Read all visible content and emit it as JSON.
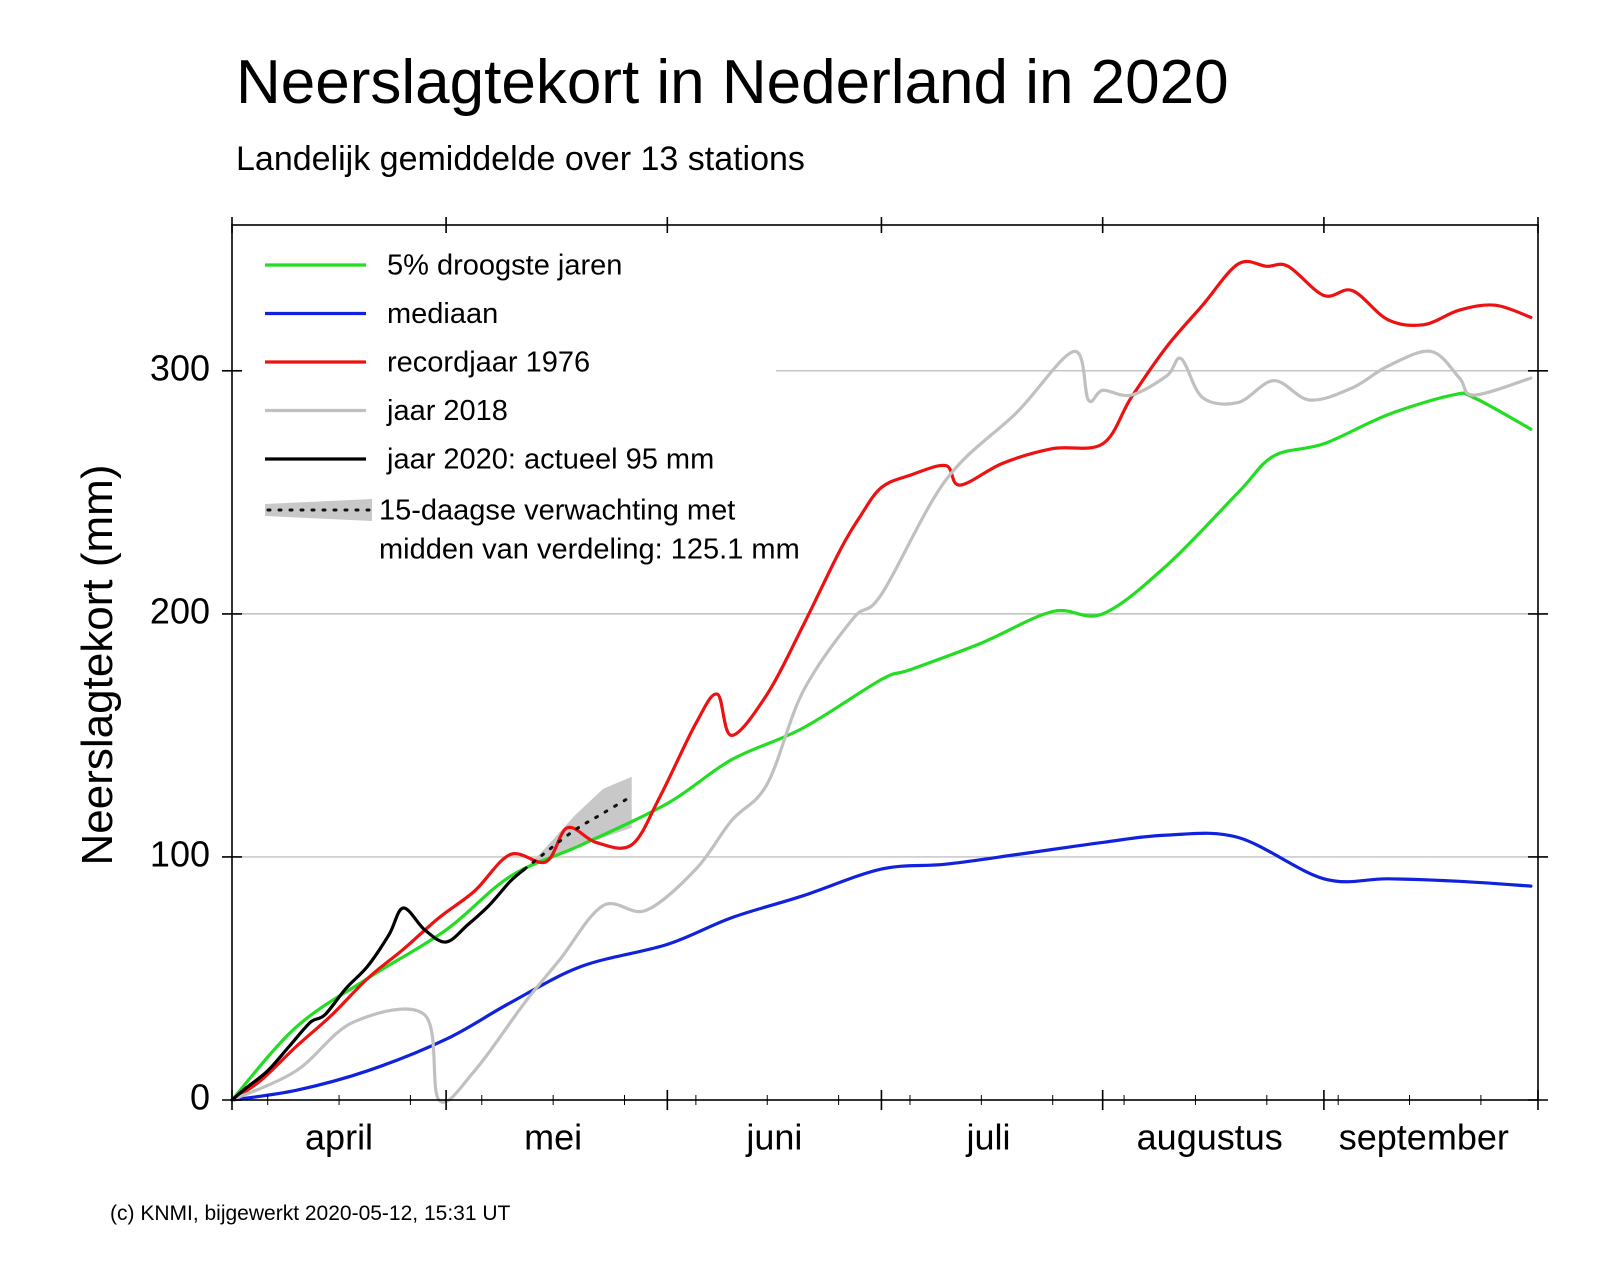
{
  "chart_data": {
    "type": "line",
    "title": "Neerslagtekort in Nederland in 2020",
    "subtitle": "Landelijk gemiddelde over 13 stations",
    "ylabel": "Neerslagtekort (mm)",
    "xlabel": "",
    "ylim": [
      0,
      360
    ],
    "xlim": [
      "2020-04-01",
      "2020-09-30"
    ],
    "yticks": [
      0,
      100,
      200,
      300
    ],
    "month_ticks": [
      "2020-04-01",
      "2020-05-01",
      "2020-06-01",
      "2020-07-01",
      "2020-08-01",
      "2020-09-01",
      "2020-10-01"
    ],
    "month_labels": [
      {
        "label": "april",
        "center": "2020-04-16"
      },
      {
        "label": "mei",
        "center": "2020-05-16"
      },
      {
        "label": "juni",
        "center": "2020-06-16"
      },
      {
        "label": "juli",
        "center": "2020-07-16"
      },
      {
        "label": "augustus",
        "center": "2020-08-16"
      },
      {
        "label": "september",
        "center": "2020-09-15"
      }
    ],
    "grid": "horizontal",
    "legend_position": "top-left",
    "series": [
      {
        "name": "5% droogste jaren",
        "color": "#22dd22",
        "x": [
          "2020-04-01",
          "2020-04-10",
          "2020-04-20",
          "2020-05-01",
          "2020-05-10",
          "2020-05-20",
          "2020-06-01",
          "2020-06-10",
          "2020-06-20",
          "2020-07-01",
          "2020-07-05",
          "2020-07-15",
          "2020-07-25",
          "2020-08-01",
          "2020-08-10",
          "2020-08-20",
          "2020-08-25",
          "2020-09-01",
          "2020-09-10",
          "2020-09-19",
          "2020-09-22",
          "2020-09-30"
        ],
        "y": [
          0,
          30,
          50,
          70,
          92,
          105,
          122,
          140,
          153,
          173,
          177,
          188,
          201,
          200,
          220,
          250,
          265,
          270,
          282,
          290,
          289,
          276
        ]
      },
      {
        "name": "mediaan",
        "color": "#1122dd",
        "x": [
          "2020-04-01",
          "2020-04-10",
          "2020-04-20",
          "2020-05-01",
          "2020-05-10",
          "2020-05-20",
          "2020-06-01",
          "2020-06-10",
          "2020-06-20",
          "2020-07-01",
          "2020-07-10",
          "2020-07-20",
          "2020-08-01",
          "2020-08-10",
          "2020-08-20",
          "2020-09-01",
          "2020-09-10",
          "2020-09-20",
          "2020-09-30"
        ],
        "y": [
          0,
          4,
          12,
          25,
          40,
          55,
          64,
          75,
          84,
          95,
          97,
          101,
          106,
          109,
          108,
          91,
          91,
          90,
          88
        ]
      },
      {
        "name": "recordjaar 1976",
        "color": "#ee1111",
        "x": [
          "2020-04-01",
          "2020-04-05",
          "2020-04-10",
          "2020-04-15",
          "2020-04-20",
          "2020-04-25",
          "2020-04-30",
          "2020-05-05",
          "2020-05-10",
          "2020-05-15",
          "2020-05-18",
          "2020-05-22",
          "2020-05-27",
          "2020-05-31",
          "2020-06-05",
          "2020-06-08",
          "2020-06-10",
          "2020-06-15",
          "2020-06-20",
          "2020-06-25",
          "2020-06-28",
          "2020-07-01",
          "2020-07-05",
          "2020-07-10",
          "2020-07-12",
          "2020-07-18",
          "2020-07-25",
          "2020-08-01",
          "2020-08-05",
          "2020-08-10",
          "2020-08-15",
          "2020-08-20",
          "2020-08-24",
          "2020-08-27",
          "2020-09-01",
          "2020-09-05",
          "2020-09-10",
          "2020-09-15",
          "2020-09-20",
          "2020-09-25",
          "2020-09-30"
        ],
        "y": [
          0,
          8,
          22,
          35,
          50,
          62,
          75,
          86,
          101,
          98,
          112,
          106,
          105,
          125,
          155,
          167,
          150,
          167,
          195,
          225,
          240,
          252,
          257,
          261,
          253,
          262,
          268,
          270,
          289,
          310,
          327,
          344,
          343,
          343,
          331,
          333,
          321,
          319,
          325,
          327,
          322
        ]
      },
      {
        "name": "jaar 2018",
        "color": "#c0c0c0",
        "x": [
          "2020-04-01",
          "2020-04-10",
          "2020-04-18",
          "2020-04-28",
          "2020-04-30",
          "2020-05-05",
          "2020-05-12",
          "2020-05-17",
          "2020-05-23",
          "2020-05-29",
          "2020-06-05",
          "2020-06-10",
          "2020-06-15",
          "2020-06-20",
          "2020-06-27",
          "2020-07-01",
          "2020-07-10",
          "2020-07-20",
          "2020-07-28",
          "2020-07-30",
          "2020-08-01",
          "2020-08-05",
          "2020-08-10",
          "2020-08-12",
          "2020-08-15",
          "2020-08-20",
          "2020-08-25",
          "2020-08-30",
          "2020-09-05",
          "2020-09-10",
          "2020-09-16",
          "2020-09-20",
          "2020-09-22",
          "2020-09-30"
        ],
        "y": [
          0,
          12,
          32,
          35,
          0,
          12,
          40,
          58,
          80,
          78,
          95,
          115,
          130,
          168,
          198,
          208,
          255,
          283,
          308,
          288,
          292,
          290,
          298,
          305,
          289,
          287,
          296,
          288,
          293,
          302,
          308,
          297,
          290,
          297
        ]
      },
      {
        "name": "jaar 2020: actueel 95 mm",
        "color": "#000000",
        "x": [
          "2020-04-01",
          "2020-04-03",
          "2020-04-06",
          "2020-04-09",
          "2020-04-12",
          "2020-04-14",
          "2020-04-17",
          "2020-04-20",
          "2020-04-23",
          "2020-04-25",
          "2020-04-28",
          "2020-05-01",
          "2020-05-04",
          "2020-05-07",
          "2020-05-10",
          "2020-05-12"
        ],
        "y": [
          0,
          5,
          12,
          22,
          32,
          35,
          46,
          55,
          68,
          79,
          70,
          65,
          72,
          80,
          90,
          95
        ]
      }
    ],
    "forecast": {
      "name": "15-daagse verwachting met",
      "name_line2": "midden van verdeling: 125.1 mm",
      "color": "#c8c8c8",
      "x": [
        "2020-05-12",
        "2020-05-15",
        "2020-05-19",
        "2020-05-23",
        "2020-05-27"
      ],
      "median": [
        95,
        102,
        111,
        118,
        125
      ],
      "lower": [
        95,
        99,
        104,
        108,
        112
      ],
      "upper": [
        95,
        104,
        117,
        128,
        133
      ]
    },
    "footer": "(c) KNMI, bijgewerkt 2020-05-12, 15:31 UT"
  }
}
